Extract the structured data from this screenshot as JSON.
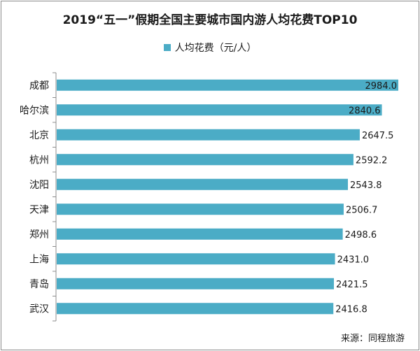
{
  "chart_data": {
    "type": "bar",
    "orientation": "horizontal",
    "title": "2019“五一”假期全国主要城市国内游人均花费TOP10",
    "categories": [
      "成都",
      "哈尔滨",
      "北京",
      "杭州",
      "沈阳",
      "天津",
      "郑州",
      "上海",
      "青岛",
      "武汉"
    ],
    "series": [
      {
        "name": "人均花费（元/人）",
        "values": [
          2984.0,
          2840.6,
          2647.5,
          2592.2,
          2543.8,
          2506.7,
          2498.6,
          2431.0,
          2421.5,
          2416.8
        ],
        "value_labels": [
          "2984.0",
          "2840.6",
          "2647.5",
          "2592.2",
          "2543.8",
          "2506.7",
          "2498.6",
          "2431.0",
          "2421.5",
          "2416.8"
        ]
      }
    ],
    "legend_position": "top",
    "grid": false,
    "bar_color": "#4bacc6"
  },
  "source": "来源：同程旅游"
}
